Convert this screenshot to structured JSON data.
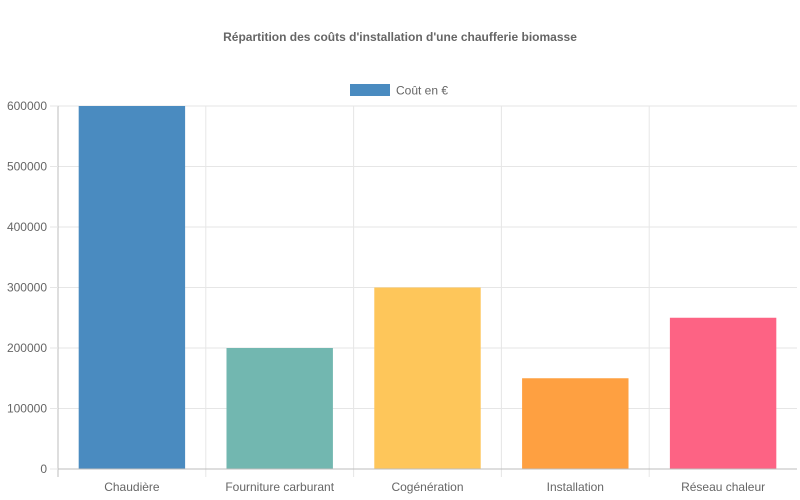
{
  "chart_data": {
    "type": "bar",
    "title": "Répartition des coûts d'installation d'une chaufferie biomasse",
    "categories": [
      "Chaudière",
      "Fourniture carburant",
      "Cogénération",
      "Installation",
      "Réseau chaleur"
    ],
    "series": [
      {
        "name": "Coût en €",
        "values": [
          600000,
          200000,
          300000,
          150000,
          250000
        ],
        "colors": [
          "#4a8bc0",
          "#72b7b0",
          "#fec65a",
          "#fea041",
          "#fd6384"
        ]
      }
    ],
    "legend_color": "#4a8bc0",
    "ylim": [
      0,
      600000
    ],
    "yticks": [
      0,
      100000,
      200000,
      300000,
      400000,
      500000,
      600000
    ],
    "grid": true,
    "legend_position": "top"
  }
}
